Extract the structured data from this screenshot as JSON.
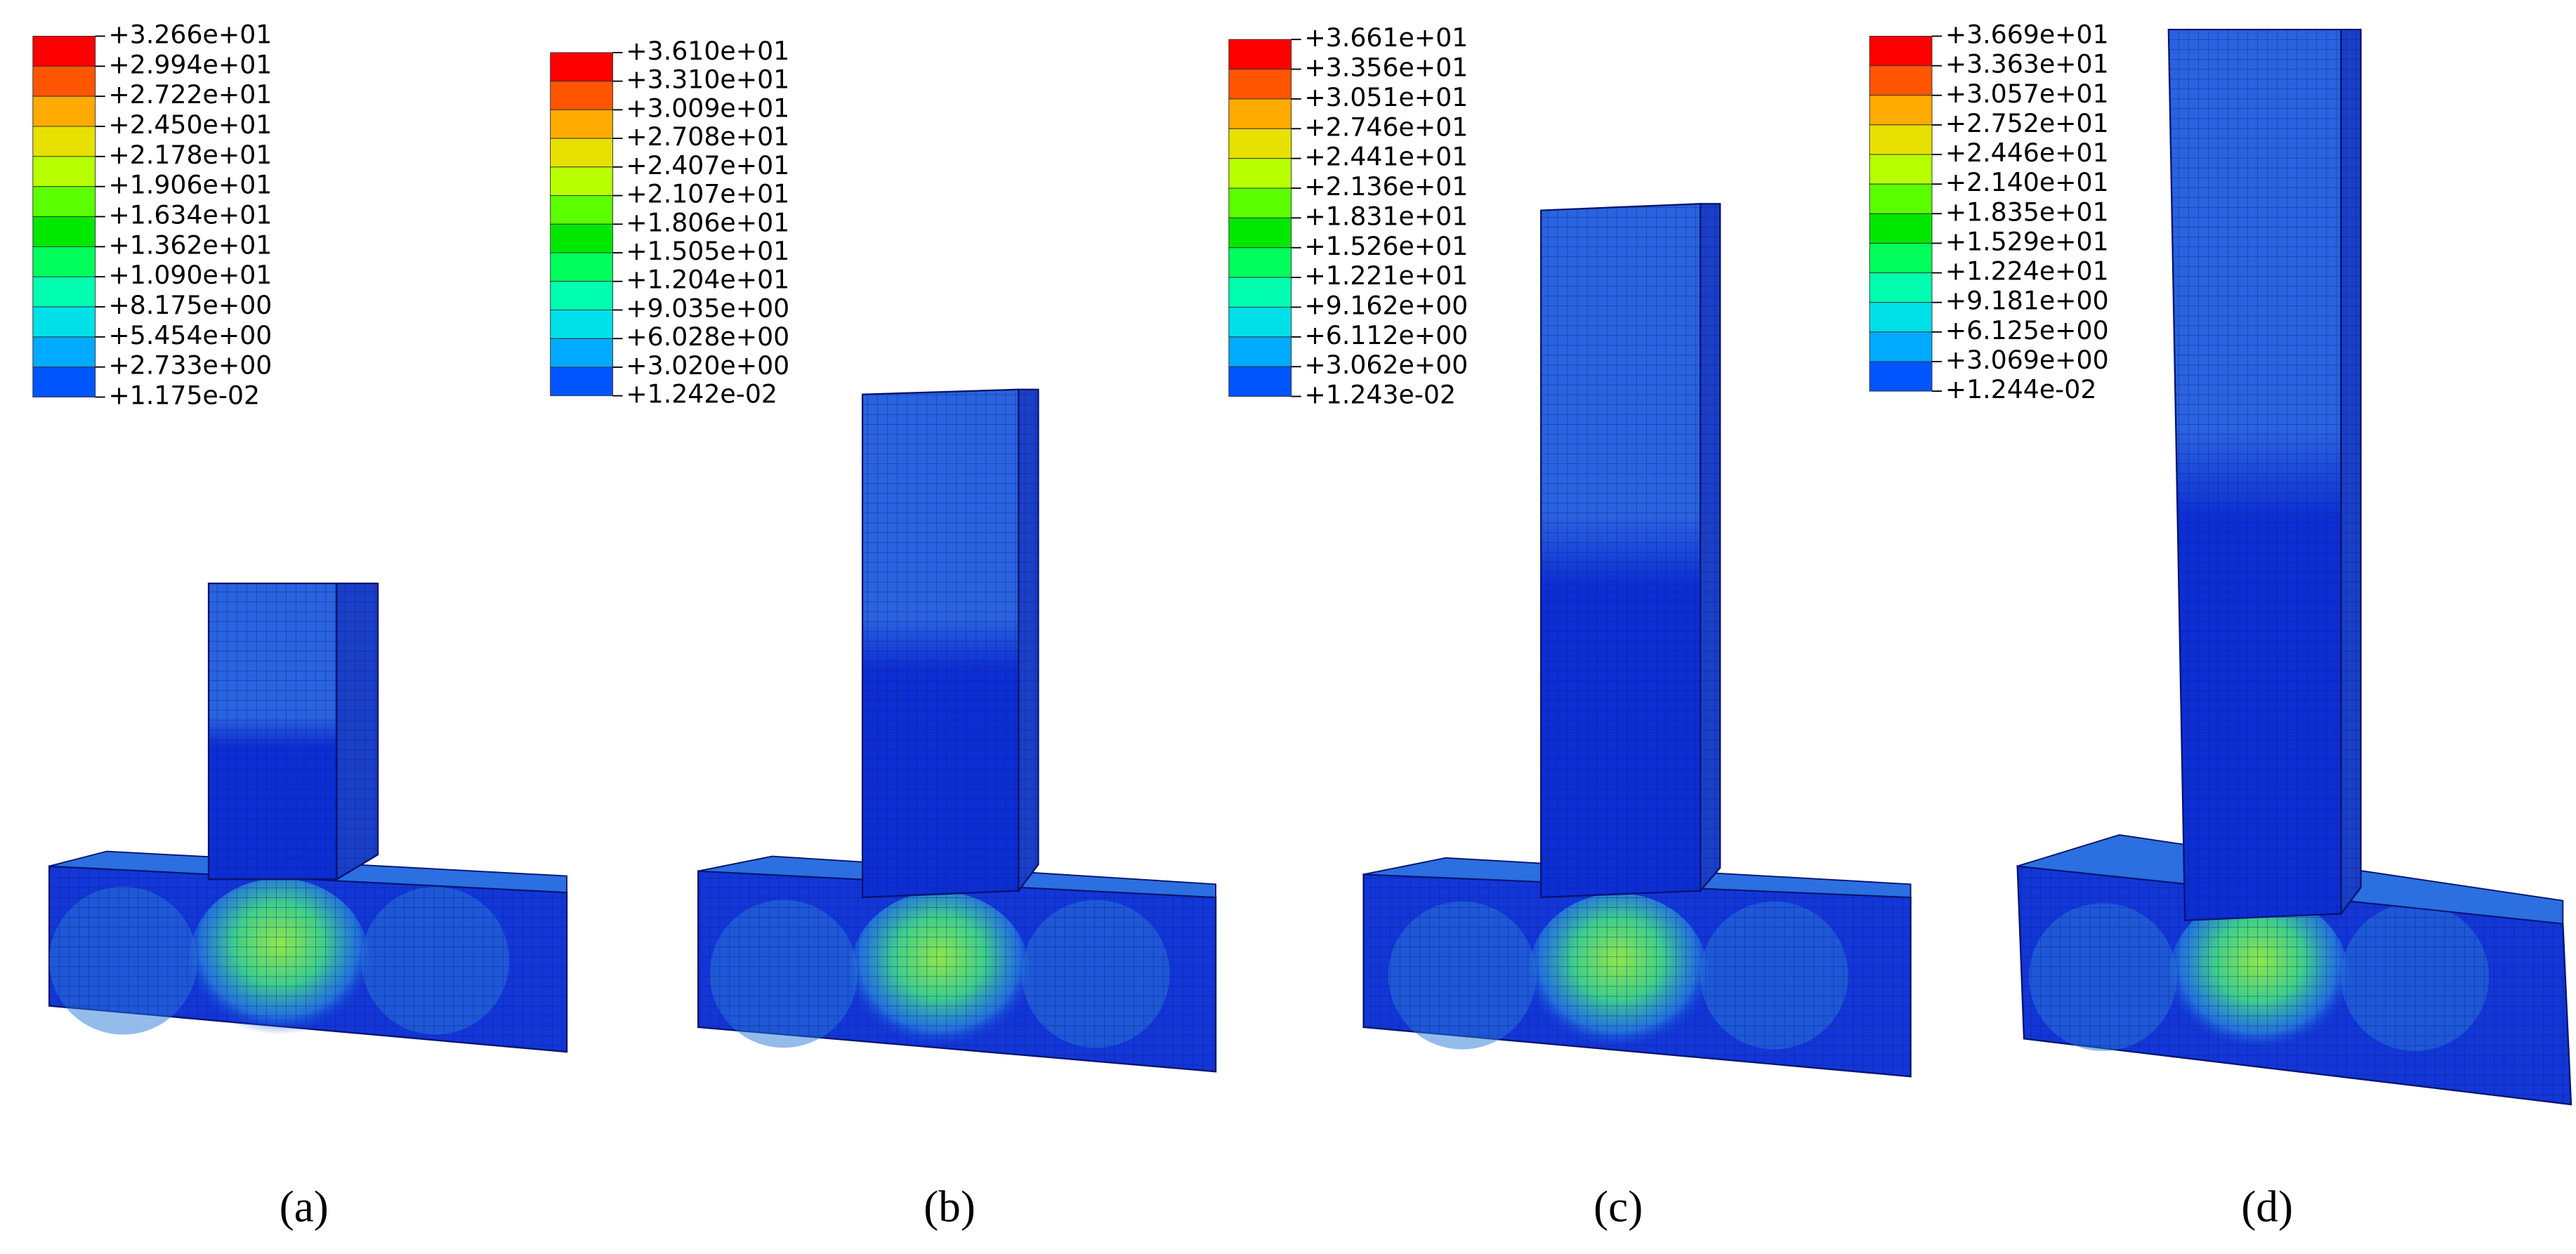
{
  "panels": [
    {
      "legend": [
        "+3.266e+01",
        "+2.994e+01",
        "+2.722e+01",
        "+2.450e+01",
        "+2.178e+01",
        "+1.906e+01",
        "+1.634e+01",
        "+1.362e+01",
        "+1.090e+01",
        "+8.175e+00",
        "+5.454e+00",
        "+2.733e+00",
        "+1.175e-02"
      ],
      "caption": "(a)"
    },
    {
      "legend": [
        "+3.610e+01",
        "+3.310e+01",
        "+3.009e+01",
        "+2.708e+01",
        "+2.407e+01",
        "+2.107e+01",
        "+1.806e+01",
        "+1.505e+01",
        "+1.204e+01",
        "+9.035e+00",
        "+6.028e+00",
        "+3.020e+00",
        "+1.242e-02"
      ],
      "caption": "(b)"
    },
    {
      "legend": [
        "+3.661e+01",
        "+3.356e+01",
        "+3.051e+01",
        "+2.746e+01",
        "+2.441e+01",
        "+2.136e+01",
        "+1.831e+01",
        "+1.526e+01",
        "+1.221e+01",
        "+9.162e+00",
        "+6.112e+00",
        "+3.062e+00",
        "+1.243e-02"
      ],
      "caption": "(c)"
    },
    {
      "legend": [
        "+3.669e+01",
        "+3.363e+01",
        "+3.057e+01",
        "+2.752e+01",
        "+2.446e+01",
        "+2.140e+01",
        "+1.835e+01",
        "+1.529e+01",
        "+1.224e+01",
        "+9.181e+00",
        "+6.125e+00",
        "+3.069e+00",
        "+1.244e-02"
      ],
      "caption": "(d)"
    }
  ]
}
